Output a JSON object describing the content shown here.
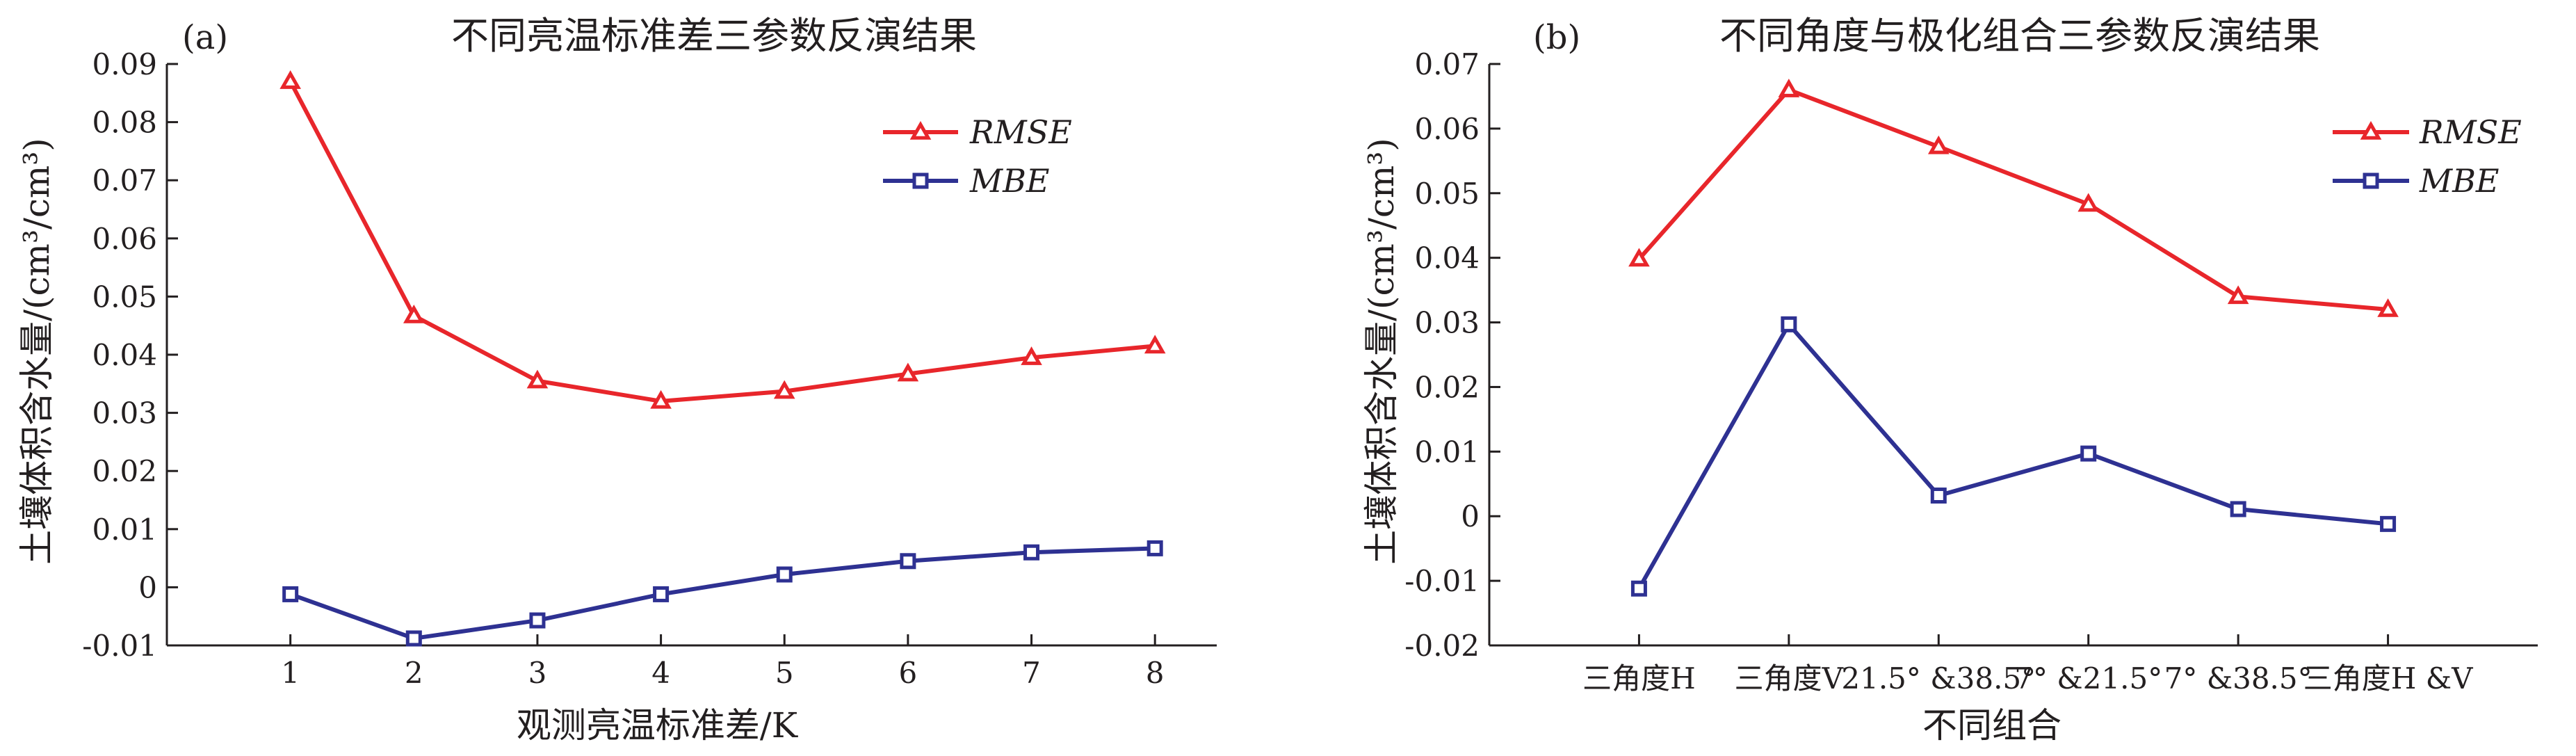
{
  "figure": {
    "panels": [
      {
        "tag": "(a)",
        "title": "不同亮温标准差三参数反演结果"
      },
      {
        "tag": "(b)",
        "title": "不同角度与极化组合三参数反演结果"
      }
    ]
  },
  "colors": {
    "rmse": "#e8262b",
    "mbe": "#2e3192",
    "axis": "#231f20"
  },
  "chart_data": [
    {
      "type": "line",
      "title": "不同亮温标准差三参数反演结果",
      "xlabel": "观测亮温标准差/K",
      "ylabel": "土壤体积含水量/(cm³/cm³)",
      "categories": [
        "1",
        "2",
        "3",
        "4",
        "5",
        "6",
        "7",
        "8"
      ],
      "xlim": [
        0,
        8.5
      ],
      "ylim": [
        -0.01,
        0.09
      ],
      "yticks": [
        -0.01,
        0,
        0.01,
        0.02,
        0.03,
        0.04,
        0.05,
        0.06,
        0.07,
        0.08,
        0.09
      ],
      "ytick_labels": [
        "-0.01",
        "0",
        "0.01",
        "0.02",
        "0.03",
        "0.04",
        "0.05",
        "0.06",
        "0.07",
        "0.08",
        "0.09"
      ],
      "legend_position": "top-right",
      "grid": false,
      "series": [
        {
          "name": "RMSE",
          "marker": "triangle",
          "values": [
            0.087,
            0.0467,
            0.0355,
            0.032,
            0.0337,
            0.0367,
            0.0395,
            0.0415
          ]
        },
        {
          "name": "MBE",
          "marker": "square",
          "values": [
            -0.0012,
            -0.0088,
            -0.0057,
            -0.0012,
            0.0022,
            0.0045,
            0.006,
            0.0067
          ]
        }
      ]
    },
    {
      "type": "line",
      "title": "不同角度与极化组合三参数反演结果",
      "xlabel": "不同组合",
      "ylabel": "土壤体积含水量/(cm³/cm³)",
      "categories": [
        "三角度H",
        "三角度V",
        "21.5° &38.5°",
        "7° &21.5°",
        "7° &38.5°",
        "三角度H &V"
      ],
      "xlim": [
        0,
        7
      ],
      "ylim": [
        -0.02,
        0.07
      ],
      "yticks": [
        -0.02,
        -0.01,
        0,
        0.01,
        0.02,
        0.03,
        0.04,
        0.05,
        0.06,
        0.07
      ],
      "ytick_labels": [
        "-0.02",
        "-0.01",
        "0",
        "0.01",
        "0.02",
        "0.03",
        "0.04",
        "0.05",
        "0.06",
        "0.07"
      ],
      "legend_position": "top-right",
      "grid": false,
      "series": [
        {
          "name": "RMSE",
          "marker": "triangle",
          "values": [
            0.0398,
            0.066,
            0.0572,
            0.0483,
            0.034,
            0.032
          ]
        },
        {
          "name": "MBE",
          "marker": "square",
          "values": [
            -0.0112,
            0.0297,
            0.0032,
            0.0097,
            0.0011,
            -0.0012
          ]
        }
      ]
    }
  ]
}
